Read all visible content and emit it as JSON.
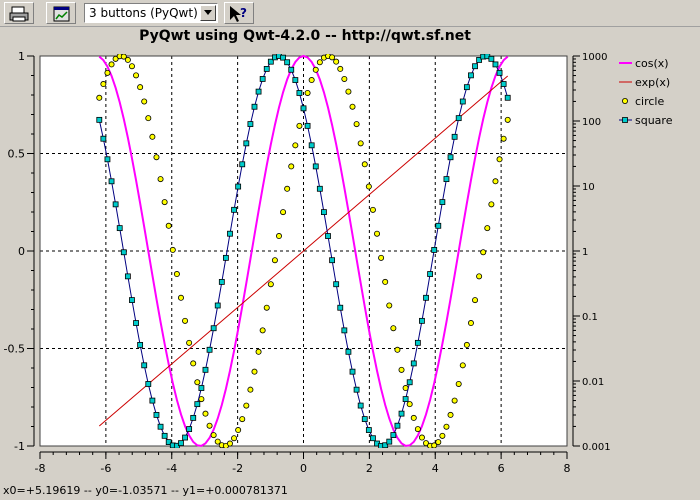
{
  "toolbar": {
    "buttons": [
      {
        "name": "print-button",
        "icon": "printer-icon"
      },
      {
        "name": "copy-button",
        "icon": "window-copy-icon"
      }
    ],
    "combo_value": "3 buttons (PyQwt)",
    "help_icon": "whats-this-icon"
  },
  "plot_title": "PyQwt using Qwt-4.2.0 -- http://qwt.sf.net",
  "status_text": "x0=+5.19619 -- y0=-1.03571 -- y1=+0.000781371",
  "chart_data": {
    "type": "line",
    "title": "PyQwt using Qwt-4.2.0 -- http://qwt.sf.net",
    "xlabel": "",
    "ylabel": "",
    "xlim": [
      -8,
      8
    ],
    "ylim": [
      -1,
      1
    ],
    "y2lim": [
      0.001,
      1000
    ],
    "y2scale": "log",
    "grid": true,
    "legend_position": "right",
    "x_ticks": [
      "-8",
      "-6",
      "-4",
      "-2",
      "0",
      "2",
      "4",
      "6",
      "8"
    ],
    "y_ticks": [
      "-1",
      "-0.5",
      "0",
      "0.5",
      "1"
    ],
    "y2_ticks": [
      "0.001",
      "0.01",
      "0.1",
      "1",
      "10",
      "100",
      "1000"
    ],
    "x_range": [
      -6.2,
      6.2
    ],
    "series": [
      {
        "name": "cos(x)",
        "function": "cos(x)",
        "axis": "left",
        "color": "#ff00ff",
        "style": "line"
      },
      {
        "name": "exp(x)",
        "function": "exp(x)",
        "axis": "right",
        "color": "#cc0000",
        "style": "line"
      },
      {
        "name": "circle",
        "function": "cos(x - 0.75)",
        "axis": "left",
        "color": "#ffff00",
        "style": "circle-markers"
      },
      {
        "name": "square",
        "function": "cos(x + 0.75)",
        "axis": "left",
        "color": "#00cccc",
        "style": "square-markers-line"
      }
    ]
  }
}
